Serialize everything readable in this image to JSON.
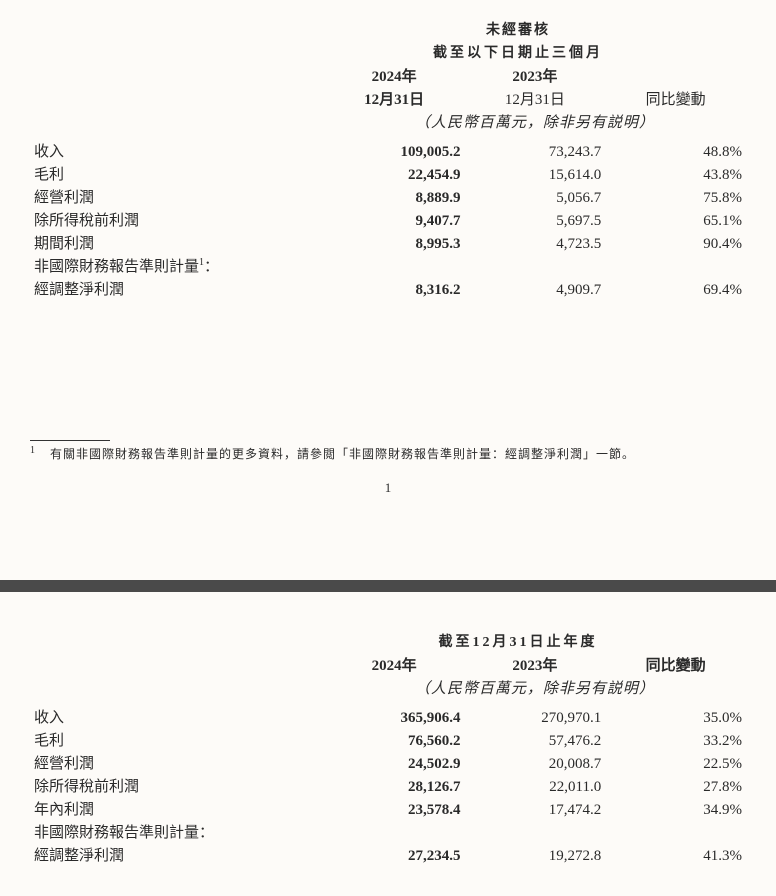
{
  "page1": {
    "header": {
      "unaudited": "未經審核",
      "period_line": "截至以下日期止三個月",
      "year_2024": "2024年",
      "year_2023": "2023年",
      "date_2024": "12月31日",
      "date_2023": "12月31日",
      "yoy_label": "同比變動",
      "unit_note": "（人民幣百萬元，除非另有説明）"
    },
    "rows": {
      "revenue": {
        "label": "收入",
        "v2024": "109,005.2",
        "v2023": "73,243.7",
        "yoy": "48.8%"
      },
      "gross": {
        "label": "毛利",
        "v2024": "22,454.9",
        "v2023": "15,614.0",
        "yoy": "43.8%"
      },
      "opprofit": {
        "label": "經營利潤",
        "v2024": "8,889.9",
        "v2023": "5,056.7",
        "yoy": "75.8%"
      },
      "pretax": {
        "label": "除所得稅前利潤",
        "v2024": "9,407.7",
        "v2023": "5,697.5",
        "yoy": "65.1%"
      },
      "period": {
        "label": "期間利潤",
        "v2024": "8,995.3",
        "v2023": "4,723.5",
        "yoy": "90.4%"
      },
      "nonifrs_label": "非國際財務報告準則計量",
      "sup1": "1",
      "colon": "：",
      "adjnet": {
        "label": "經調整淨利潤",
        "v2024": "8,316.2",
        "v2023": "4,909.7",
        "yoy": "69.4%"
      }
    },
    "footnote": {
      "num": "1",
      "text": "有關非國際財務報告準則計量的更多資料，請參閲「非國際財務報告準則計量：經調整淨利潤」一節。"
    },
    "page_number": "1"
  },
  "page2": {
    "header": {
      "period_line": "截至12月31日止年度",
      "year_2024": "2024年",
      "year_2023": "2023年",
      "yoy_label": "同比變動",
      "unit_note": "（人民幣百萬元，除非另有説明）"
    },
    "rows": {
      "revenue": {
        "label": "收入",
        "v2024": "365,906.4",
        "v2023": "270,970.1",
        "yoy": "35.0%"
      },
      "gross": {
        "label": "毛利",
        "v2024": "76,560.2",
        "v2023": "57,476.2",
        "yoy": "33.2%"
      },
      "opprofit": {
        "label": "經營利潤",
        "v2024": "24,502.9",
        "v2023": "20,008.7",
        "yoy": "22.5%"
      },
      "pretax": {
        "label": "除所得稅前利潤",
        "v2024": "28,126.7",
        "v2023": "22,011.0",
        "yoy": "27.8%"
      },
      "yearprofit": {
        "label": "年內利潤",
        "v2024": "23,578.4",
        "v2023": "17,474.2",
        "yoy": "34.9%"
      },
      "nonifrs_label": "非國際財務報告準則計量：",
      "adjnet": {
        "label": "經調整淨利潤",
        "v2024": "27,234.5",
        "v2023": "19,272.8",
        "yoy": "41.3%"
      }
    }
  }
}
